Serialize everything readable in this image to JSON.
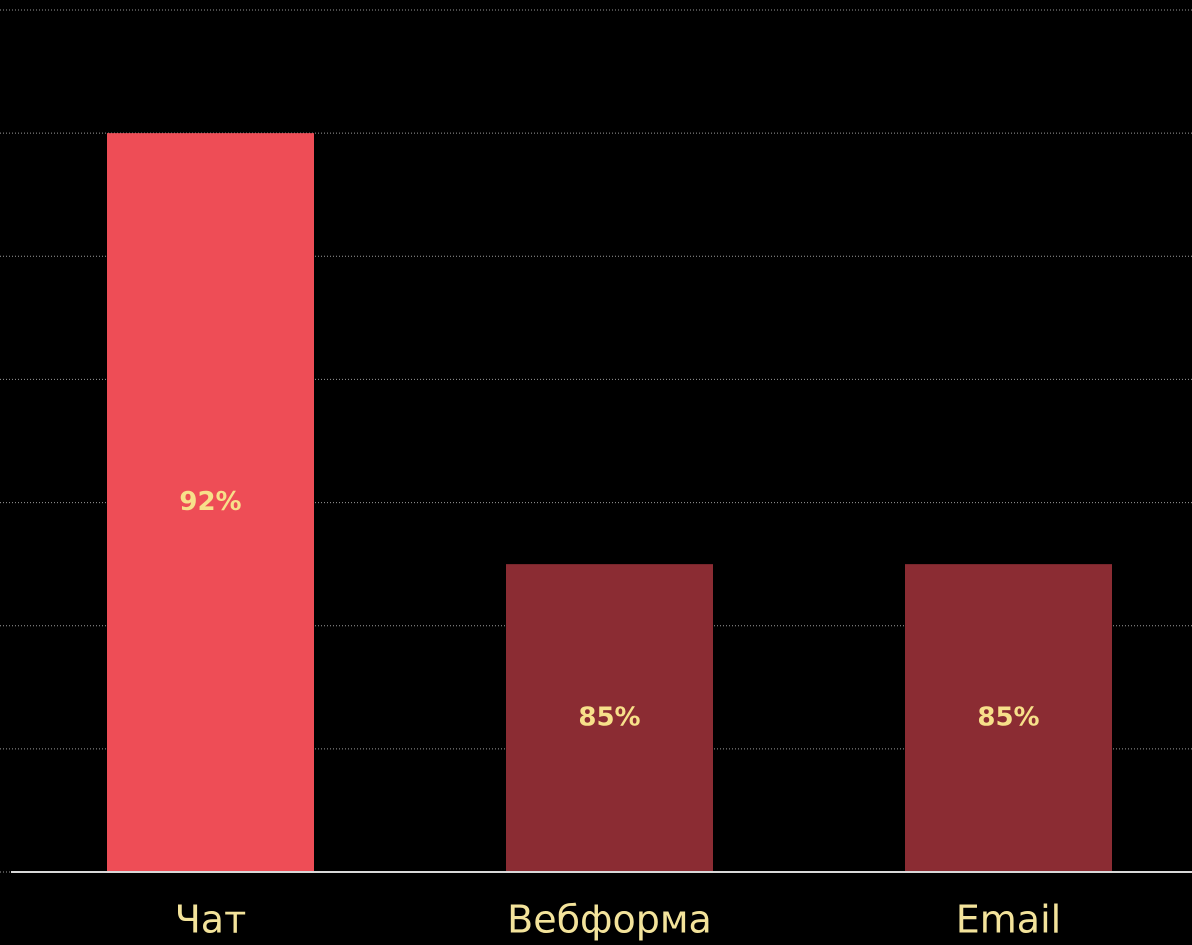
{
  "chart_data": {
    "type": "bar",
    "categories": [
      "Чат",
      "Вебформа",
      "Email"
    ],
    "values": [
      92,
      85,
      85
    ],
    "value_labels": [
      "92%",
      "85%",
      "85%"
    ],
    "colors": [
      "#ee4d56",
      "#8b2c33",
      "#8b2c33"
    ],
    "ylim": [
      80,
      94
    ],
    "yticks": [
      80,
      82,
      84,
      86,
      88,
      90,
      92,
      94
    ],
    "grid": true
  }
}
